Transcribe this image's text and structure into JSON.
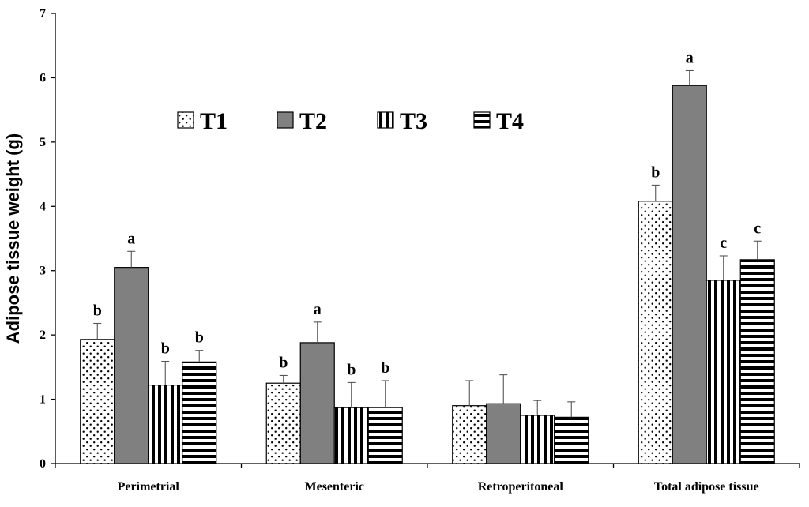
{
  "chart_data": {
    "type": "bar",
    "title": "",
    "xlabel": "",
    "ylabel": "Adipose tissue weight (g)",
    "ylim": [
      0,
      7
    ],
    "yticks": [
      "0",
      "1",
      "2",
      "3",
      "4",
      "5",
      "6",
      "7"
    ],
    "grid": false,
    "legend_position": "top-left",
    "categories": [
      "Perimetrial",
      "Mesenteric",
      "Retroperitoneal",
      "Total adipose tissue"
    ],
    "series": [
      {
        "name": "T1",
        "pattern": "dots",
        "values": [
          1.93,
          1.25,
          0.9,
          4.08
        ],
        "errors": [
          0.25,
          0.12,
          0.39,
          0.25
        ],
        "labels": [
          "b",
          "b",
          "",
          "b"
        ]
      },
      {
        "name": "T2",
        "pattern": "solid-gray",
        "color": "#808080",
        "values": [
          3.05,
          1.88,
          0.93,
          5.88
        ],
        "errors": [
          0.25,
          0.32,
          0.45,
          0.23
        ],
        "labels": [
          "a",
          "a",
          "",
          "a"
        ]
      },
      {
        "name": "T3",
        "pattern": "vertical-stripes",
        "values": [
          1.22,
          0.87,
          0.75,
          2.85
        ],
        "errors": [
          0.37,
          0.39,
          0.23,
          0.38
        ],
        "labels": [
          "b",
          "b",
          "",
          "c"
        ]
      },
      {
        "name": "T4",
        "pattern": "horizontal-stripes",
        "values": [
          1.58,
          0.87,
          0.72,
          3.17
        ],
        "errors": [
          0.18,
          0.42,
          0.24,
          0.29
        ],
        "labels": [
          "b",
          "b",
          "",
          "c"
        ]
      }
    ]
  }
}
